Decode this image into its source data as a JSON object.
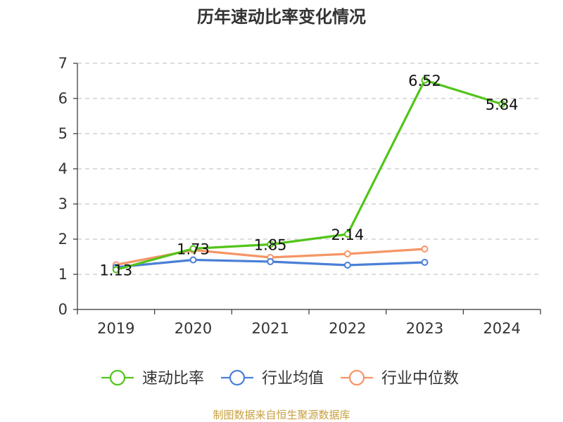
{
  "chart_data": {
    "type": "line",
    "title": "历年速动比率变化情况",
    "categories": [
      "2019",
      "2020",
      "2021",
      "2022",
      "2023",
      "2024"
    ],
    "ylim": [
      0,
      7
    ],
    "yticks": [
      0,
      1,
      2,
      3,
      4,
      5,
      6,
      7
    ],
    "grid": true,
    "legend_position": "bottom",
    "series": [
      {
        "name": "速动比率",
        "color": "#52c41a",
        "values": [
          1.13,
          1.73,
          1.85,
          2.14,
          6.52,
          5.84
        ],
        "show_labels": true
      },
      {
        "name": "行业均值",
        "color": "#4a7fd6",
        "values": [
          1.2,
          1.41,
          1.36,
          1.26,
          1.34,
          null
        ],
        "show_labels": false
      },
      {
        "name": "行业中位数",
        "color": "#f59566",
        "values": [
          1.27,
          1.69,
          1.48,
          1.58,
          1.72,
          null
        ],
        "show_labels": false
      }
    ],
    "source": "制图数据来自恒生聚源数据库"
  }
}
